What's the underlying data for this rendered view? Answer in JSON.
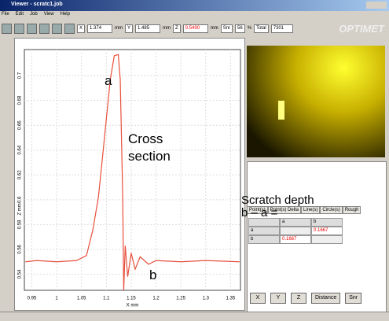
{
  "window": {
    "title": "Viewer - scratc1.job",
    "menu": [
      "File",
      "Edit",
      "Job",
      "View",
      "Help"
    ],
    "toolbar": {
      "x_label": "X",
      "x_value": "1.374",
      "x_unit": "mm",
      "y_label": "Y",
      "y_value": "1.485",
      "y_unit": "mm",
      "z_label": "Z",
      "z_value": "0.5490",
      "z_unit": "mm",
      "snr_label": "Snr",
      "snr_value": "56",
      "snr_unit": "%",
      "total_label": "Total",
      "total_value": "7301"
    },
    "logo": "OPTIMET"
  },
  "chart_data": {
    "type": "line",
    "x_label": "X mm",
    "y_label": "Z mm",
    "color": "#e8503c",
    "x": [
      0.937,
      0.96,
      1.0,
      1.04,
      1.06,
      1.073,
      1.084,
      1.092,
      1.1,
      1.108,
      1.116,
      1.124,
      1.128,
      1.133,
      1.135,
      1.138,
      1.143,
      1.15,
      1.158,
      1.168,
      1.185,
      1.2,
      1.25,
      1.3,
      1.368
    ],
    "values": [
      0.55,
      0.551,
      0.55,
      0.551,
      0.555,
      0.576,
      0.602,
      0.633,
      0.665,
      0.697,
      0.716,
      0.717,
      0.697,
      0.602,
      0.527,
      0.563,
      0.538,
      0.557,
      0.544,
      0.554,
      0.548,
      0.551,
      0.55,
      0.551,
      0.55
    ],
    "xlim": [
      0.935,
      1.37
    ],
    "ylim": [
      0.527,
      0.721
    ],
    "xticks": [
      0.95,
      1,
      1.05,
      1.1,
      1.15,
      1.2,
      1.25,
      1.3,
      1.35
    ],
    "yticks": [
      0.54,
      0.56,
      0.58,
      0.6,
      0.62,
      0.64,
      0.66,
      0.68,
      0.7
    ],
    "grid": true,
    "annotations": [
      "a",
      "Cross section",
      "b"
    ]
  },
  "panel": {
    "tabs": [
      "Point(s)",
      "Point(s) Delta",
      "Line(s)",
      "Circle(s)",
      "Rough"
    ],
    "note": [
      "Scratch depth",
      "b – a ="
    ],
    "table": {
      "header": [
        "a",
        "b"
      ],
      "rows": [
        {
          "name": "a",
          "b": "0.1667"
        },
        {
          "name": "b",
          "a": "0.1667"
        }
      ]
    },
    "buttons": [
      "X",
      "Y",
      "Z",
      "Distance",
      "Snr"
    ]
  }
}
